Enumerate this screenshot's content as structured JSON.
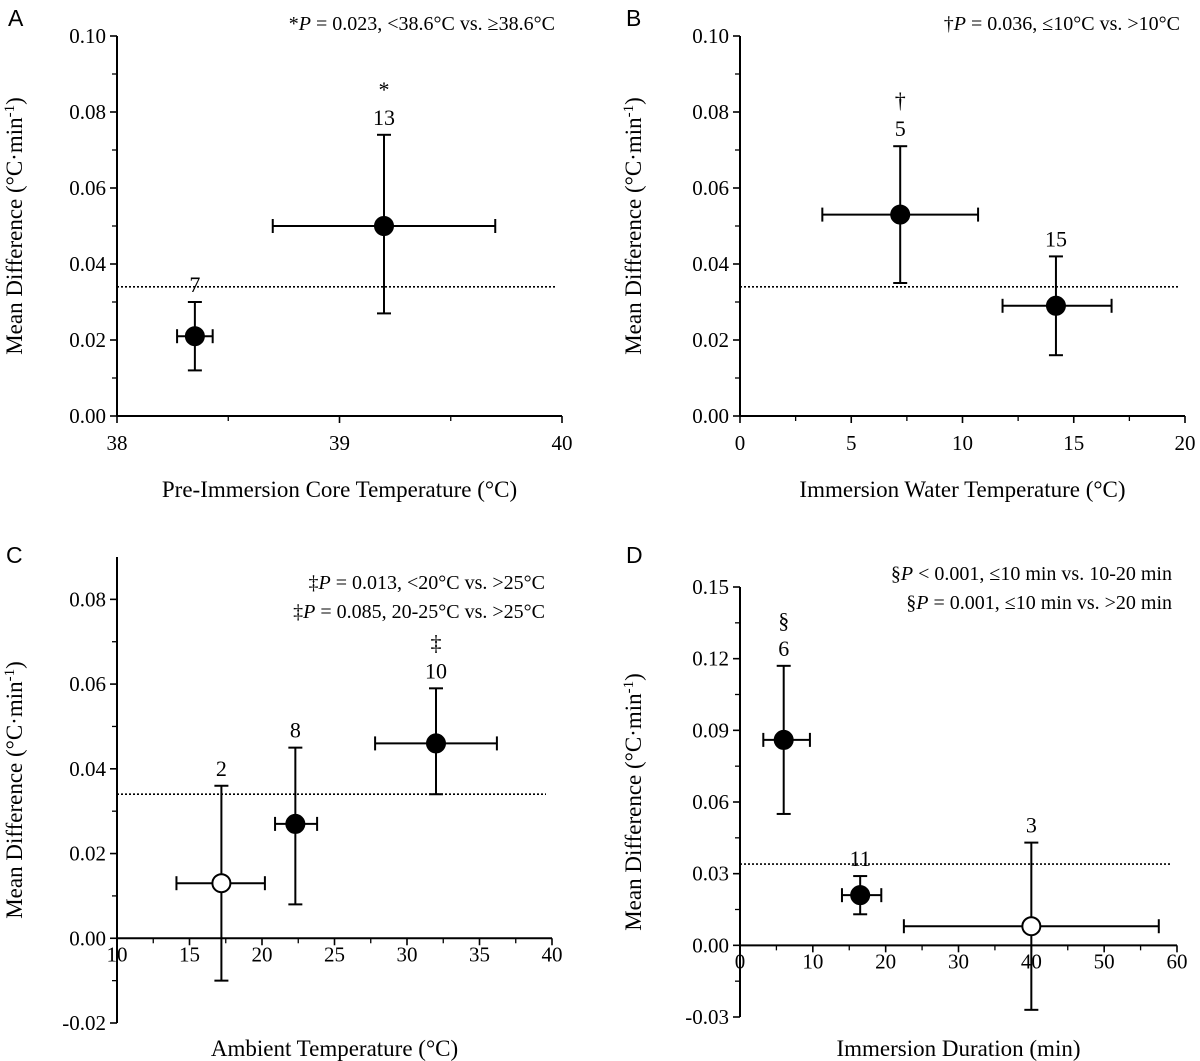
{
  "chart_data": [
    {
      "type": "scatter",
      "panel": "A",
      "xlabel": "Pre-Immersion Core Temperature (°C)",
      "ylabel_main": "Mean Difference (°C·min",
      "ylabel_sup": "-1",
      "ylabel_close": ")",
      "xlim": [
        38,
        40
      ],
      "ylim": [
        0,
        0.1
      ],
      "xticks": [
        38,
        39,
        40
      ],
      "yticks": [
        0,
        0.02,
        0.04,
        0.06,
        0.08,
        0.1
      ],
      "xtick_labels": [
        "38",
        "39",
        "40"
      ],
      "ytick_labels": [
        "0.00",
        "0.02",
        "0.04",
        "0.06",
        "0.08",
        "0.10"
      ],
      "reference_y": 0.034,
      "note_lines": [
        {
          "pre": "*",
          "ital": "P",
          "post": " = 0.023, <38.6°C vs. ≥38.6°C"
        }
      ],
      "points": [
        {
          "x": 38.35,
          "y": 0.021,
          "xerr": 0.08,
          "ylo": 0.012,
          "yhi": 0.03,
          "n": "7",
          "symbol": "",
          "filled": true
        },
        {
          "x": 39.2,
          "y": 0.05,
          "xlo": 38.7,
          "xhi": 39.7,
          "ylo": 0.027,
          "yhi": 0.074,
          "n": "13",
          "symbol": "*",
          "filled": true
        }
      ]
    },
    {
      "type": "scatter",
      "panel": "B",
      "xlabel": "Immersion Water Temperature (°C)",
      "ylabel_main": "Mean Difference (°C·min",
      "ylabel_sup": "-1",
      "ylabel_close": ")",
      "xlim": [
        0,
        20
      ],
      "ylim": [
        0,
        0.1
      ],
      "xticks": [
        0,
        5,
        10,
        15,
        20
      ],
      "yticks": [
        0,
        0.02,
        0.04,
        0.06,
        0.08,
        0.1
      ],
      "xtick_labels": [
        "0",
        "5",
        "10",
        "15",
        "20"
      ],
      "ytick_labels": [
        "0.00",
        "0.02",
        "0.04",
        "0.06",
        "0.08",
        "0.10"
      ],
      "reference_y": 0.034,
      "note_lines": [
        {
          "pre": "†",
          "ital": "P",
          "post": " = 0.036, ≤10°C vs. >10°C"
        }
      ],
      "points": [
        {
          "x": 7.2,
          "y": 0.053,
          "xlo": 3.7,
          "xhi": 10.7,
          "ylo": 0.035,
          "yhi": 0.071,
          "n": "5",
          "symbol": "†",
          "filled": true
        },
        {
          "x": 14.2,
          "y": 0.029,
          "xlo": 11.8,
          "xhi": 16.7,
          "ylo": 0.016,
          "yhi": 0.042,
          "n": "15",
          "symbol": "",
          "filled": true
        }
      ]
    },
    {
      "type": "scatter",
      "panel": "C",
      "xlabel": "Ambient Temperature (°C)",
      "ylabel_main": "Mean Difference (°C·min",
      "ylabel_sup": "-1",
      "ylabel_close": ")",
      "xlim": [
        10,
        40
      ],
      "ylim": [
        -0.02,
        0.09
      ],
      "xticks": [
        10,
        15,
        20,
        25,
        30,
        35,
        40
      ],
      "yticks": [
        -0.02,
        0,
        0.02,
        0.04,
        0.06,
        0.08
      ],
      "xtick_labels": [
        "10",
        "15",
        "20",
        "25",
        "30",
        "35",
        "40"
      ],
      "ytick_labels": [
        "-0.02",
        "0.00",
        "0.02",
        "0.04",
        "0.06",
        "0.08"
      ],
      "reference_y": 0.034,
      "note_lines": [
        {
          "pre": "‡",
          "ital": "P",
          "post": " = 0.013, <20°C vs. >25°C"
        },
        {
          "pre": "‡",
          "ital": "P",
          "post": " = 0.085, 20-25°C vs. >25°C"
        }
      ],
      "points": [
        {
          "x": 17.2,
          "y": 0.013,
          "xlo": 14.1,
          "xhi": 20.2,
          "ylo": -0.01,
          "yhi": 0.036,
          "n": "2",
          "symbol": "",
          "filled": false
        },
        {
          "x": 22.3,
          "y": 0.027,
          "xlo": 20.9,
          "xhi": 23.8,
          "ylo": 0.008,
          "yhi": 0.045,
          "n": "8",
          "symbol": "",
          "filled": true
        },
        {
          "x": 32.0,
          "y": 0.046,
          "xlo": 27.8,
          "xhi": 36.2,
          "ylo": 0.034,
          "yhi": 0.059,
          "n": "10",
          "symbol": "‡",
          "filled": true
        }
      ]
    },
    {
      "type": "scatter",
      "panel": "D",
      "xlabel": "Immersion Duration (min)",
      "ylabel_main": "Mean Difference (°C·min",
      "ylabel_sup": "-1",
      "ylabel_close": ")",
      "xlim": [
        0,
        60
      ],
      "ylim": [
        -0.03,
        0.15
      ],
      "xticks": [
        0,
        10,
        20,
        30,
        40,
        50,
        60
      ],
      "yticks": [
        -0.03,
        0,
        0.03,
        0.06,
        0.09,
        0.12,
        0.15
      ],
      "xtick_labels": [
        "0",
        "10",
        "20",
        "30",
        "40",
        "50",
        "60"
      ],
      "ytick_labels": [
        "-0.03",
        "0.00",
        "0.03",
        "0.06",
        "0.09",
        "0.12",
        "0.15"
      ],
      "reference_y": 0.034,
      "note_lines": [
        {
          "pre": "§",
          "ital": "P",
          "post": " < 0.001, ≤10 min vs. 10-20 min"
        },
        {
          "pre": "§",
          "ital": "P",
          "post": " = 0.001, ≤10 min vs. >20 min"
        }
      ],
      "points": [
        {
          "x": 6.0,
          "y": 0.086,
          "xlo": 3.2,
          "xhi": 9.6,
          "ylo": 0.055,
          "yhi": 0.117,
          "n": "6",
          "symbol": "§",
          "filled": true
        },
        {
          "x": 16.5,
          "y": 0.021,
          "xlo": 14.0,
          "xhi": 19.4,
          "ylo": 0.013,
          "yhi": 0.029,
          "n": "11",
          "symbol": "",
          "filled": true
        },
        {
          "x": 40.0,
          "y": 0.008,
          "xlo": 22.5,
          "xhi": 57.5,
          "ylo": -0.027,
          "yhi": 0.043,
          "n": "3",
          "symbol": "",
          "filled": false
        }
      ]
    }
  ]
}
